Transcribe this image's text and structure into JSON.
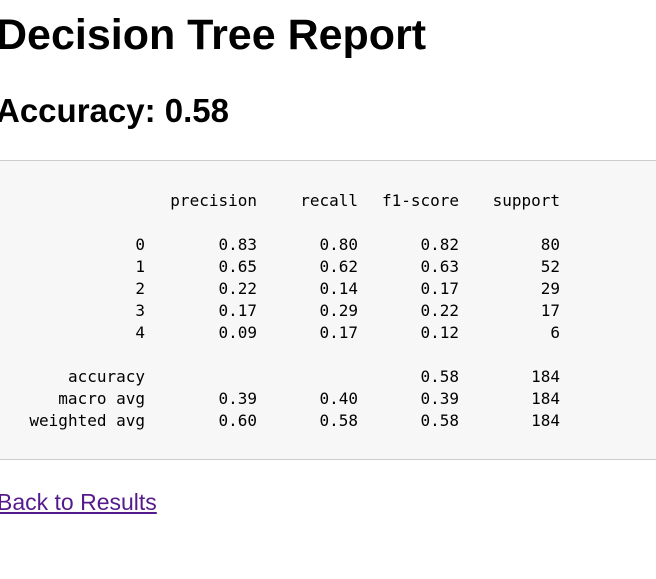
{
  "page": {
    "title": "Decision Tree Report",
    "accuracy_heading": "Accuracy: 0.58"
  },
  "report": {
    "headers": {
      "label": "",
      "precision": "precision",
      "recall": "recall",
      "f1": "f1-score",
      "support": "support"
    },
    "classes": [
      {
        "label": "0",
        "precision": "0.83",
        "recall": "0.80",
        "f1": "0.82",
        "support": "80"
      },
      {
        "label": "1",
        "precision": "0.65",
        "recall": "0.62",
        "f1": "0.63",
        "support": "52"
      },
      {
        "label": "2",
        "precision": "0.22",
        "recall": "0.14",
        "f1": "0.17",
        "support": "29"
      },
      {
        "label": "3",
        "precision": "0.17",
        "recall": "0.29",
        "f1": "0.22",
        "support": "17"
      },
      {
        "label": "4",
        "precision": "0.09",
        "recall": "0.17",
        "f1": "0.12",
        "support": "6"
      }
    ],
    "summary": [
      {
        "label": "accuracy",
        "precision": "",
        "recall": "",
        "f1": "0.58",
        "support": "184"
      },
      {
        "label": "macro avg",
        "precision": "0.39",
        "recall": "0.40",
        "f1": "0.39",
        "support": "184"
      },
      {
        "label": "weighted avg",
        "precision": "0.60",
        "recall": "0.58",
        "f1": "0.58",
        "support": "184"
      }
    ]
  },
  "nav": {
    "back_label": "Back to Results"
  }
}
